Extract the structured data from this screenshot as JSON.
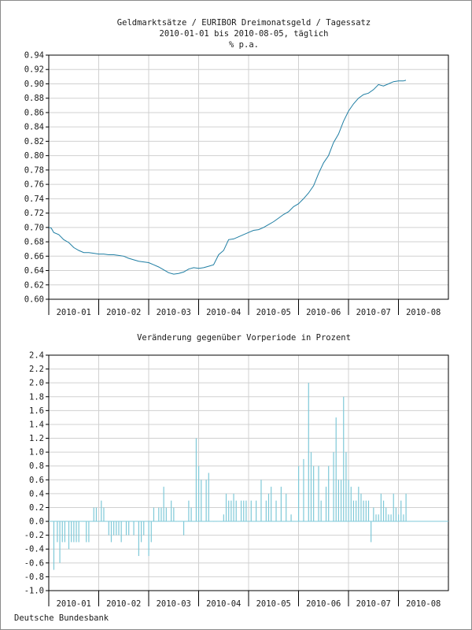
{
  "title": {
    "line1": "Geldmarktsätze / EURIBOR Dreimonatsgeld / Tagessatz",
    "line2": "2010-01-01 bis 2010-08-05, täglich",
    "line3": "% p.a."
  },
  "source": "Deutsche Bundesbank",
  "colors": {
    "series": "#1f7ea3",
    "bars": "#7fc9d8",
    "grid": "#d0d0d0",
    "axis": "#000000"
  },
  "chart_data": [
    {
      "type": "line",
      "title": "Geldmarktsätze / EURIBOR Dreimonatsgeld / Tagessatz",
      "ylabel": "% p.a.",
      "ylim": [
        0.6,
        0.94
      ],
      "yticks": [
        "0.60",
        "0.62",
        "0.64",
        "0.66",
        "0.68",
        "0.70",
        "0.72",
        "0.74",
        "0.76",
        "0.78",
        "0.80",
        "0.82",
        "0.84",
        "0.86",
        "0.88",
        "0.90",
        "0.92",
        "0.94"
      ],
      "xlim": [
        0,
        8
      ],
      "month_labels": [
        "2010-01",
        "2010-02",
        "2010-03",
        "2010-04",
        "2010-05",
        "2010-06",
        "2010-07",
        "2010-08"
      ],
      "x": [
        0.0,
        0.05,
        0.1,
        0.2,
        0.3,
        0.4,
        0.5,
        0.6,
        0.7,
        0.8,
        0.9,
        1.0,
        1.1,
        1.2,
        1.3,
        1.4,
        1.5,
        1.6,
        1.7,
        1.8,
        1.9,
        2.0,
        2.1,
        2.2,
        2.3,
        2.4,
        2.5,
        2.6,
        2.7,
        2.8,
        2.9,
        3.0,
        3.1,
        3.2,
        3.3,
        3.4,
        3.5,
        3.6,
        3.7,
        3.8,
        3.9,
        4.0,
        4.1,
        4.2,
        4.3,
        4.4,
        4.5,
        4.6,
        4.7,
        4.8,
        4.9,
        5.0,
        5.1,
        5.2,
        5.3,
        5.4,
        5.5,
        5.6,
        5.7,
        5.8,
        5.9,
        6.0,
        6.1,
        6.2,
        6.3,
        6.4,
        6.5,
        6.6,
        6.7,
        6.8,
        6.9,
        7.0,
        7.1,
        7.15
      ],
      "values": [
        0.7,
        0.699,
        0.693,
        0.69,
        0.683,
        0.679,
        0.672,
        0.668,
        0.665,
        0.665,
        0.664,
        0.663,
        0.663,
        0.662,
        0.662,
        0.661,
        0.66,
        0.657,
        0.655,
        0.653,
        0.652,
        0.651,
        0.648,
        0.645,
        0.641,
        0.637,
        0.635,
        0.636,
        0.638,
        0.642,
        0.644,
        0.643,
        0.644,
        0.646,
        0.648,
        0.662,
        0.668,
        0.683,
        0.684,
        0.687,
        0.69,
        0.693,
        0.696,
        0.697,
        0.7,
        0.704,
        0.708,
        0.713,
        0.718,
        0.722,
        0.729,
        0.733,
        0.74,
        0.748,
        0.758,
        0.775,
        0.79,
        0.8,
        0.818,
        0.83,
        0.848,
        0.862,
        0.872,
        0.88,
        0.885,
        0.887,
        0.892,
        0.899,
        0.897,
        0.9,
        0.903,
        0.904,
        0.904,
        0.905
      ]
    },
    {
      "type": "bar",
      "title": "Veränderung gegenüber Vorperiode in Prozent",
      "ylim": [
        -1.0,
        2.4
      ],
      "yticks": [
        "-1.0",
        "-0.8",
        "-0.6",
        "-0.4",
        "-0.2",
        "0.0",
        "0.2",
        "0.4",
        "0.6",
        "0.8",
        "1.0",
        "1.2",
        "1.4",
        "1.6",
        "1.8",
        "2.0",
        "2.2",
        "2.4"
      ],
      "xlim": [
        0,
        8
      ],
      "month_labels": [
        "2010-01",
        "2010-02",
        "2010-03",
        "2010-04",
        "2010-05",
        "2010-06",
        "2010-07",
        "2010-08"
      ],
      "x": [
        0.1,
        0.17,
        0.22,
        0.27,
        0.32,
        0.4,
        0.45,
        0.5,
        0.55,
        0.6,
        0.7,
        0.75,
        0.8,
        0.9,
        0.95,
        1.05,
        1.1,
        1.2,
        1.25,
        1.3,
        1.35,
        1.4,
        1.45,
        1.55,
        1.6,
        1.7,
        1.8,
        1.85,
        1.9,
        2.0,
        2.05,
        2.1,
        2.2,
        2.25,
        2.3,
        2.35,
        2.45,
        2.5,
        2.55,
        2.6,
        2.7,
        2.8,
        2.85,
        2.95,
        3.0,
        3.05,
        3.15,
        3.2,
        3.3,
        3.35,
        3.45,
        3.5,
        3.55,
        3.6,
        3.65,
        3.7,
        3.75,
        3.8,
        3.85,
        3.9,
        3.95,
        4.05,
        4.15,
        4.25,
        4.35,
        4.4,
        4.45,
        4.55,
        4.65,
        4.75,
        4.85,
        5.0,
        5.1,
        5.2,
        5.25,
        5.3,
        5.4,
        5.45,
        5.55,
        5.6,
        5.7,
        5.75,
        5.8,
        5.85,
        5.9,
        5.95,
        6.0,
        6.05,
        6.1,
        6.15,
        6.2,
        6.25,
        6.3,
        6.35,
        6.4,
        6.45,
        6.5,
        6.55,
        6.6,
        6.65,
        6.7,
        6.75,
        6.8,
        6.85,
        6.9,
        6.95,
        7.0,
        7.05,
        7.1,
        7.15
      ],
      "values": [
        -0.7,
        -0.3,
        -0.6,
        -0.3,
        -0.3,
        -0.4,
        -0.3,
        -0.3,
        -0.3,
        -0.3,
        0.0,
        -0.3,
        -0.3,
        0.2,
        0.2,
        0.3,
        0.2,
        -0.2,
        -0.3,
        -0.2,
        -0.2,
        -0.2,
        -0.3,
        -0.2,
        -0.2,
        -0.2,
        -0.5,
        -0.3,
        -0.2,
        -0.5,
        -0.3,
        0.2,
        0.2,
        0.2,
        0.5,
        0.2,
        0.3,
        0.2,
        0.0,
        0.0,
        -0.2,
        0.3,
        0.2,
        1.2,
        0.8,
        0.6,
        0.6,
        0.7,
        0.0,
        0.0,
        0.0,
        0.1,
        0.4,
        0.3,
        0.3,
        0.4,
        0.3,
        0.0,
        0.3,
        0.3,
        0.3,
        0.3,
        0.3,
        0.6,
        0.3,
        0.4,
        0.5,
        0.3,
        0.5,
        0.4,
        0.1,
        0.8,
        0.9,
        2.0,
        1.0,
        0.8,
        0.8,
        0.3,
        0.5,
        0.8,
        1.0,
        1.5,
        0.6,
        0.6,
        1.8,
        1.0,
        0.6,
        0.5,
        0.3,
        0.3,
        0.5,
        0.4,
        0.3,
        0.3,
        0.3,
        -0.3,
        0.2,
        0.1,
        0.1,
        0.4,
        0.3,
        0.2,
        0.1,
        0.1,
        0.4,
        0.2,
        0.1,
        0.3,
        0.1,
        0.4
      ]
    }
  ]
}
